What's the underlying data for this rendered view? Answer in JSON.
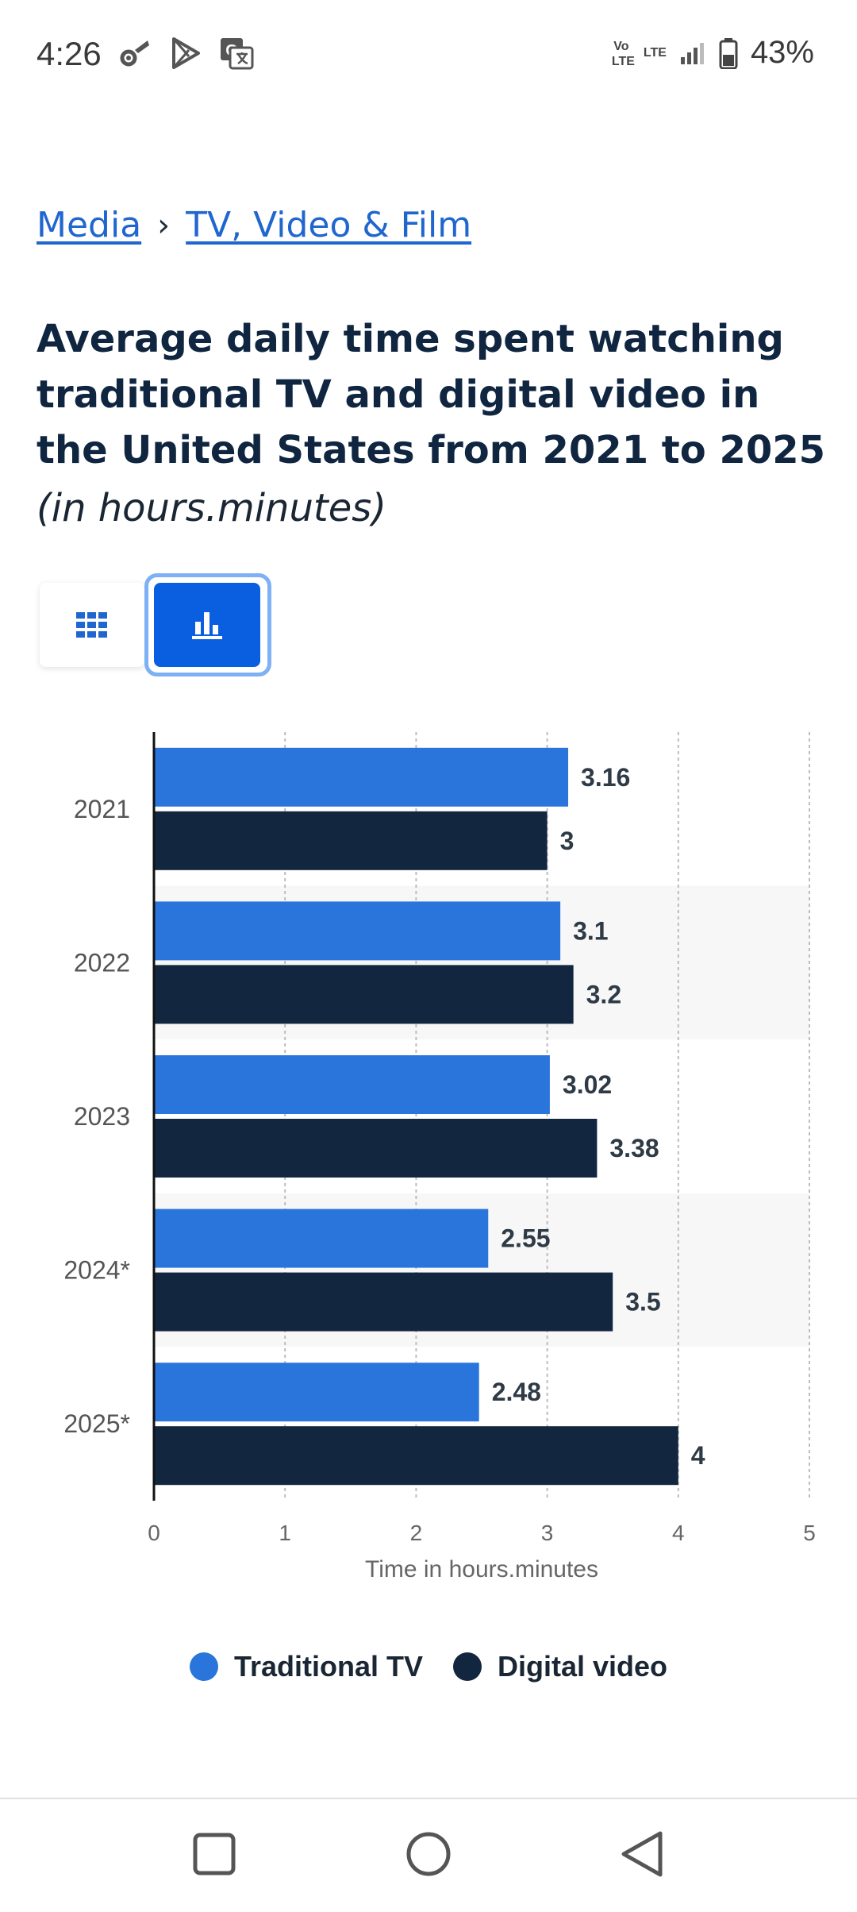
{
  "status_bar": {
    "time": "4:26",
    "battery": "43%",
    "network_volte": "Vo LTE",
    "network_lte": "LTE",
    "icons": [
      "settings-icon",
      "play-store-icon",
      "translate-icon",
      "signal-icon",
      "battery-icon"
    ]
  },
  "breadcrumb": {
    "items": [
      "Media",
      "TV, Video & Film"
    ],
    "separator": "›"
  },
  "title": "Average daily time spent watching traditional TV and digital video in the United States from 2021 to 2025",
  "subtitle": "(in hours.minutes)",
  "view_toggle": {
    "options": [
      "table-icon",
      "bar-chart-icon"
    ],
    "selected": "bar-chart-icon"
  },
  "colors": {
    "traditional_tv": "#2a75dc",
    "digital_video": "#12263f",
    "accent": "#0a5fe0"
  },
  "chart_data": {
    "type": "bar",
    "orientation": "horizontal",
    "categories": [
      "2021",
      "2022",
      "2023",
      "2024*",
      "2025*"
    ],
    "series": [
      {
        "name": "Traditional TV",
        "values": [
          3.16,
          3.1,
          3.02,
          2.55,
          2.48
        ],
        "labels": [
          "3.16",
          "3.1",
          "3.02",
          "2.55",
          "2.48"
        ]
      },
      {
        "name": "Digital video",
        "values": [
          3,
          3.2,
          3.38,
          3.5,
          4
        ],
        "labels": [
          "3",
          "3.2",
          "3.38",
          "3.5",
          "4"
        ]
      }
    ],
    "title": "Average daily time spent watching traditional TV and digital video in the United States from 2021 to 2025",
    "xlabel": "Time in hours.minutes",
    "ylabel": "",
    "xlim": [
      0,
      5
    ],
    "xticks": [
      "0",
      "1",
      "2",
      "3",
      "4",
      "5"
    ],
    "grid": true,
    "legend": "bottom"
  },
  "legend": {
    "items": [
      "Traditional TV",
      "Digital video"
    ]
  },
  "nav_bar": {
    "buttons": [
      "recents-button",
      "home-button",
      "back-button"
    ]
  }
}
